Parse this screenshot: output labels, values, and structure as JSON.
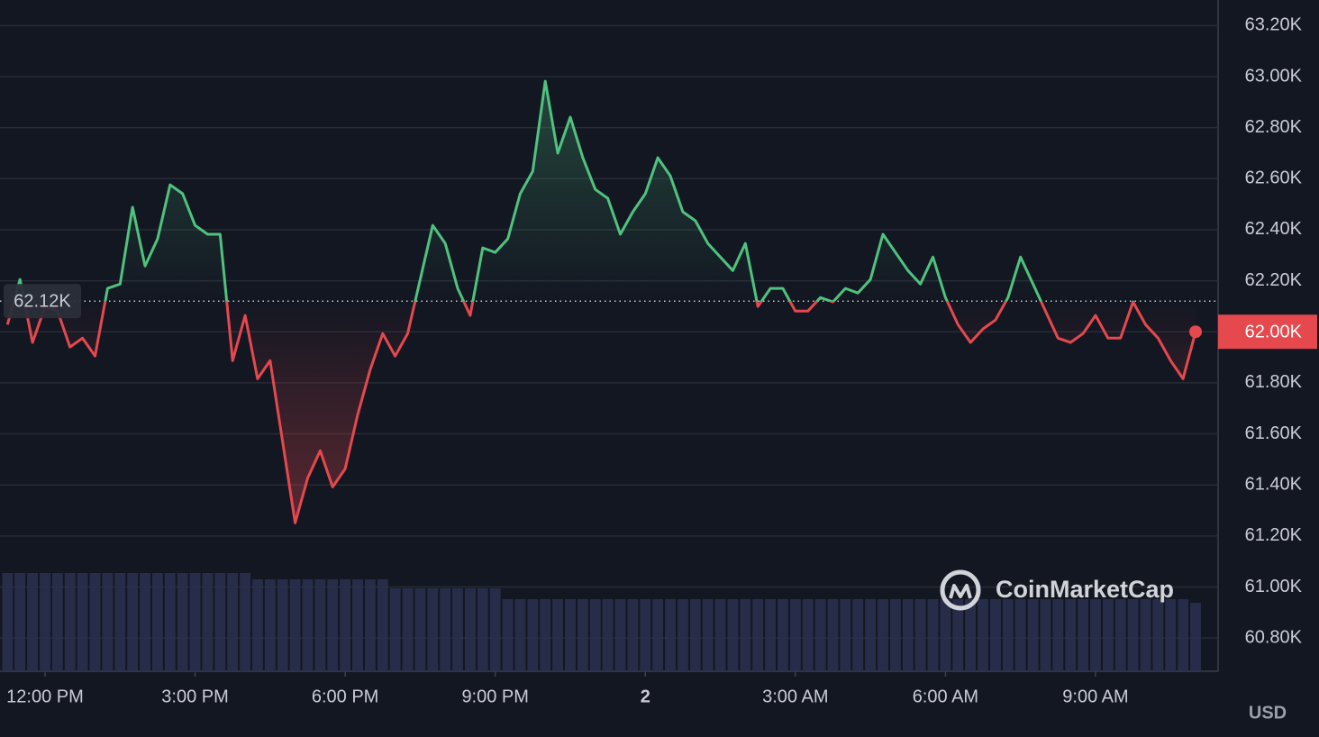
{
  "chart_data": {
    "type": "line",
    "x": [
      11.25,
      11.5,
      11.75,
      12,
      12.25,
      12.5,
      12.75,
      13,
      13.25,
      13.5,
      13.75,
      14,
      14.25,
      14.5,
      14.75,
      15,
      15.25,
      15.5,
      15.75,
      16,
      16.25,
      16.5,
      16.75,
      17,
      17.25,
      17.5,
      17.75,
      18,
      18.25,
      18.5,
      18.75,
      19,
      19.25,
      19.5,
      19.75,
      20,
      20.25,
      20.5,
      20.75,
      21,
      21.25,
      21.5,
      21.75,
      22,
      22.25,
      22.5,
      22.75,
      23,
      23.25,
      23.5,
      23.75,
      24,
      24.25,
      24.5,
      24.75,
      25,
      25.25,
      25.5,
      25.75,
      26,
      26.25,
      26.5,
      26.75,
      27,
      27.25,
      27.5,
      27.75,
      28,
      28.25,
      28.5,
      28.75,
      29,
      29.25,
      29.5,
      29.75,
      30,
      30.25,
      30.5,
      30.75,
      31,
      31.25,
      31.5,
      31.75,
      32,
      32.25,
      32.5,
      32.75,
      33,
      33.25,
      33.5,
      33.75,
      34,
      34.25,
      34.5,
      34.75,
      35
    ],
    "series": [
      {
        "values": [
          62028,
          62205,
          61958,
          62099,
          62081,
          61940,
          61975,
          61905,
          62170,
          62187,
          62488,
          62258,
          62364,
          62576,
          62541,
          62417,
          62382,
          62382,
          61887,
          62064,
          61816,
          61887,
          61569,
          61251,
          61427,
          61534,
          61392,
          61463,
          61675,
          61852,
          61993,
          61905,
          61993,
          62205,
          62417,
          62346,
          62170,
          62064,
          62329,
          62311,
          62364,
          62541,
          62629,
          62982,
          62700,
          62841,
          62682,
          62558,
          62523,
          62382,
          62470,
          62541,
          62682,
          62611,
          62470,
          62435,
          62346,
          62293,
          62240,
          62346,
          62099,
          62170,
          62170,
          62081,
          62081,
          62134,
          62117,
          62170,
          62152,
          62205,
          62382,
          62311,
          62240,
          62187,
          62293,
          62134,
          62028,
          61958,
          62011,
          62046,
          62134,
          62293,
          62187,
          62081,
          61975,
          61958,
          61993,
          62064,
          61975,
          61975,
          62117,
          62028,
          61975,
          61887,
          61816,
          62000
        ],
        "volume": [
          109,
          109,
          109,
          109,
          109,
          109,
          109,
          109,
          109,
          109,
          109,
          109,
          109,
          109,
          109,
          109,
          109,
          109,
          109,
          109,
          102,
          102,
          102,
          102,
          102,
          102,
          102,
          102,
          102,
          102,
          102,
          92,
          92,
          92,
          92,
          92,
          92,
          92,
          92,
          92,
          80,
          80,
          80,
          80,
          80,
          80,
          80,
          80,
          80,
          80,
          80,
          80,
          80,
          80,
          80,
          80,
          80,
          80,
          80,
          80,
          80,
          80,
          80,
          80,
          80,
          80,
          80,
          80,
          80,
          80,
          80,
          80,
          80,
          80,
          80,
          80,
          80,
          80,
          80,
          80,
          80,
          80,
          80,
          80,
          80,
          80,
          80,
          80,
          80,
          80,
          80,
          80,
          80,
          80,
          80,
          76
        ]
      }
    ],
    "up_color": "#4fc27e",
    "down_color": "#e5484d",
    "base": {
      "value": 62120,
      "label": "62.12K"
    },
    "last_price": {
      "value": 62000,
      "label": "62.00K"
    },
    "xlim": [
      11.1,
      35.45
    ],
    "xticks": [
      {
        "value": 12,
        "label": "12:00 PM"
      },
      {
        "value": 15,
        "label": "3:00 PM"
      },
      {
        "value": 18,
        "label": "6:00 PM"
      },
      {
        "value": 21,
        "label": "9:00 PM"
      },
      {
        "value": 24,
        "label": "2"
      },
      {
        "value": 27,
        "label": "3:00 AM"
      },
      {
        "value": 30,
        "label": "6:00 AM"
      },
      {
        "value": 33,
        "label": "9:00 AM"
      }
    ],
    "ylim": [
      60670,
      63300
    ],
    "yticks": [
      {
        "value": 60800,
        "label": "60.80K"
      },
      {
        "value": 61000,
        "label": "61.00K"
      },
      {
        "value": 61200,
        "label": "61.20K"
      },
      {
        "value": 61400,
        "label": "61.40K"
      },
      {
        "value": 61600,
        "label": "61.60K"
      },
      {
        "value": 61800,
        "label": "61.80K"
      },
      {
        "value": 62000,
        "label": "62.00K"
      },
      {
        "value": 62200,
        "label": "62.20K"
      },
      {
        "value": 62400,
        "label": "62.40K"
      },
      {
        "value": 62600,
        "label": "62.60K"
      },
      {
        "value": 62800,
        "label": "62.80K"
      },
      {
        "value": 63000,
        "label": "63.00K"
      },
      {
        "value": 63200,
        "label": "63.20K"
      }
    ],
    "grid": true,
    "currency": "USD",
    "watermark": "CoinMarketCap"
  }
}
